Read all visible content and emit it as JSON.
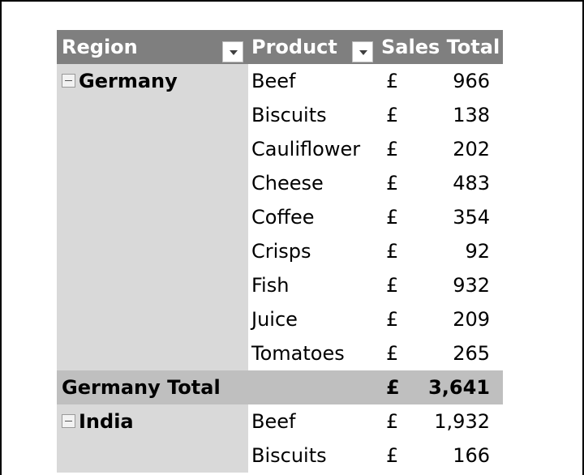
{
  "header": {
    "region_label": "Region",
    "product_label": "Product",
    "sales_label": "Sales Total"
  },
  "groups": [
    {
      "region": "Germany",
      "items": [
        {
          "product": "Beef",
          "currency": "£",
          "value": "966"
        },
        {
          "product": "Biscuits",
          "currency": "£",
          "value": "138"
        },
        {
          "product": "Cauliflower",
          "currency": "£",
          "value": "202"
        },
        {
          "product": "Cheese",
          "currency": "£",
          "value": "483"
        },
        {
          "product": "Coffee",
          "currency": "£",
          "value": "354"
        },
        {
          "product": "Crisps",
          "currency": "£",
          "value": "92"
        },
        {
          "product": "Fish",
          "currency": "£",
          "value": "932"
        },
        {
          "product": "Juice",
          "currency": "£",
          "value": "209"
        },
        {
          "product": "Tomatoes",
          "currency": "£",
          "value": "265"
        }
      ],
      "total_label": "Germany Total",
      "total_currency": "£",
      "total_value": "3,641"
    },
    {
      "region": "India",
      "items": [
        {
          "product": "Beef",
          "currency": "£",
          "value": "1,932"
        },
        {
          "product": "Biscuits",
          "currency": "£",
          "value": "166"
        }
      ]
    }
  ],
  "colors": {
    "header_bg": "#7f7f7f",
    "region_bg": "#d9d9d9",
    "total_bg": "#bfbfbf"
  },
  "icons": {
    "filter": "chevron-down-icon",
    "collapse": "collapse-minus-icon"
  }
}
